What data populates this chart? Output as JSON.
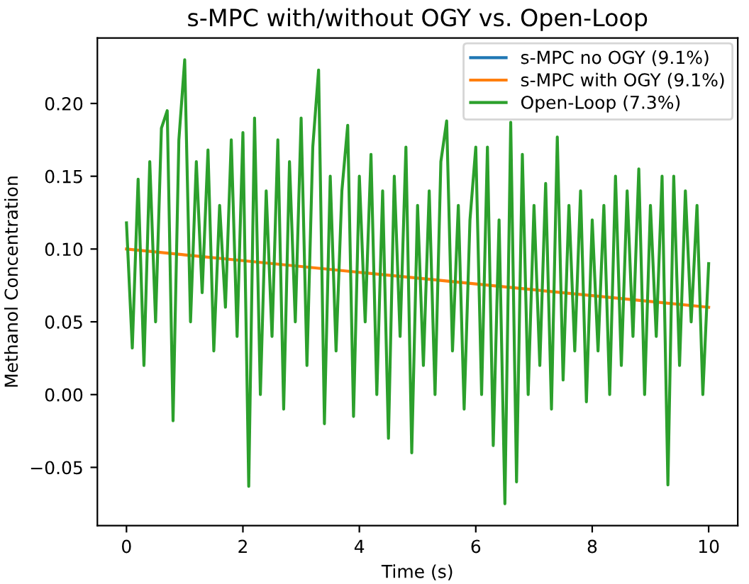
{
  "chart_data": {
    "type": "line",
    "title": "s-MPC with/without OGY vs. Open-Loop",
    "xlabel": "Time (s)",
    "ylabel": "Methanol Concentration",
    "xlim": [
      -0.5,
      10.5
    ],
    "xticks": [
      0,
      2,
      4,
      6,
      8,
      10
    ],
    "ylim": [
      -0.09,
      0.245
    ],
    "yticks": [
      {
        "value": -0.05,
        "label": "−0.05"
      },
      {
        "value": 0,
        "label": "0.00"
      },
      {
        "value": 0.05,
        "label": "0.05"
      },
      {
        "value": 0.1,
        "label": "0.10"
      },
      {
        "value": 0.15,
        "label": "0.15"
      },
      {
        "value": 0.2,
        "label": "0.20"
      }
    ],
    "legend": "top right",
    "grid": false,
    "series": [
      {
        "name": "s-MPC no OGY (9.1%)",
        "color": "#1f77b4"
      },
      {
        "name": "s-MPC with OGY (9.1%)",
        "color": "#ff7f0e",
        "x": [
          0,
          1,
          2,
          3,
          4,
          5,
          6,
          7,
          8,
          9,
          10
        ],
        "values": [
          0.1,
          0.096,
          0.092,
          0.088,
          0.084,
          0.08,
          0.076,
          0.072,
          0.068,
          0.064,
          0.06
        ]
      },
      {
        "name": "Open-Loop (7.3%)",
        "color": "#2ca02c",
        "x": [
          0,
          0.1,
          0.2,
          0.3,
          0.4,
          0.5,
          0.6,
          0.7,
          0.8,
          0.9,
          1,
          1.1,
          1.2,
          1.3,
          1.4,
          1.5,
          1.6,
          1.7,
          1.8,
          1.9,
          2,
          2.1,
          2.2,
          2.3,
          2.4,
          2.5,
          2.6,
          2.7,
          2.8,
          2.9,
          3,
          3.1,
          3.2,
          3.3,
          3.4,
          3.5,
          3.6,
          3.7,
          3.8,
          3.9,
          4,
          4.1,
          4.2,
          4.3,
          4.4,
          4.5,
          4.6,
          4.7,
          4.8,
          4.9,
          5,
          5.1,
          5.2,
          5.3,
          5.4,
          5.5,
          5.6,
          5.7,
          5.8,
          5.9,
          6,
          6.1,
          6.2,
          6.3,
          6.4,
          6.5,
          6.6,
          6.7,
          6.8,
          6.9,
          7,
          7.1,
          7.2,
          7.3,
          7.4,
          7.5,
          7.6,
          7.7,
          7.8,
          7.9,
          8,
          8.1,
          8.2,
          8.3,
          8.4,
          8.5,
          8.6,
          8.7,
          8.8,
          8.9,
          9,
          9.1,
          9.2,
          9.3,
          9.4,
          9.5,
          9.6,
          9.7,
          9.8,
          9.9,
          10
        ],
        "values": [
          0.118,
          0.032,
          0.148,
          0.02,
          0.16,
          0.05,
          0.183,
          0.195,
          -0.018,
          0.175,
          0.23,
          0.05,
          0.16,
          0.07,
          0.168,
          0.03,
          0.13,
          0.06,
          0.175,
          0.04,
          0.18,
          -0.063,
          0.19,
          0.0,
          0.14,
          0.04,
          0.175,
          -0.01,
          0.16,
          0.05,
          0.19,
          0.02,
          0.17,
          0.223,
          -0.02,
          0.15,
          0.03,
          0.14,
          0.185,
          -0.015,
          0.15,
          0.05,
          0.165,
          0.0,
          0.14,
          -0.03,
          0.15,
          0.04,
          0.17,
          -0.04,
          0.13,
          0.02,
          0.14,
          0.0,
          0.16,
          0.188,
          0.03,
          0.13,
          -0.01,
          0.12,
          0.17,
          0.0,
          0.17,
          -0.035,
          0.12,
          -0.075,
          0.187,
          -0.06,
          0.165,
          0.0,
          0.13,
          0.02,
          0.145,
          -0.01,
          0.177,
          0.01,
          0.13,
          0.03,
          0.14,
          -0.005,
          0.12,
          0.03,
          0.13,
          0.0,
          0.15,
          0.02,
          0.14,
          0.04,
          0.155,
          0.0,
          0.13,
          0.04,
          0.15,
          -0.062,
          0.15,
          0.02,
          0.14,
          0.05,
          0.13,
          0.0,
          0.09
        ]
      }
    ]
  }
}
